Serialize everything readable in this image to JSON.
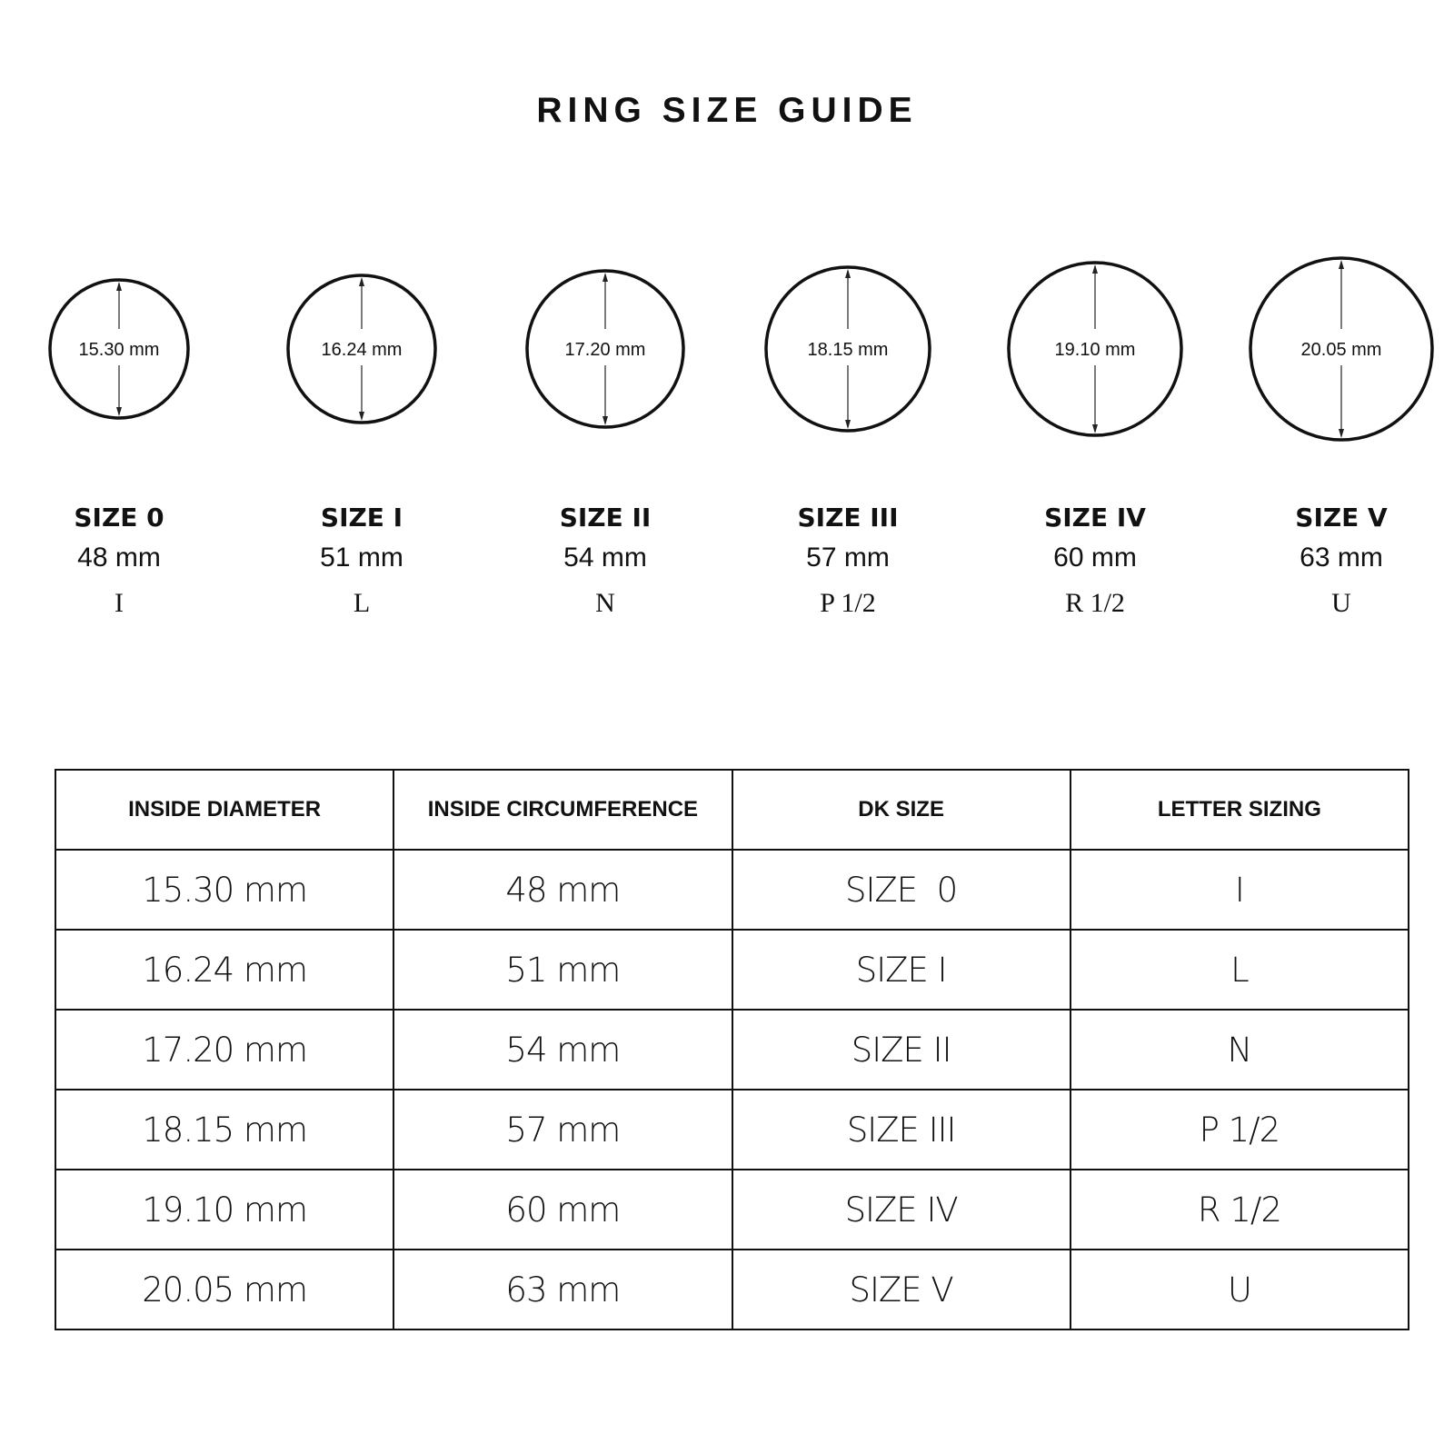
{
  "title": "RING SIZE GUIDE",
  "rings": [
    {
      "diameter": "15.30 mm",
      "size": "SIZE 0",
      "circumference": "48 mm",
      "letter": "I"
    },
    {
      "diameter": "16.24 mm",
      "size": "SIZE I",
      "circumference": "51 mm",
      "letter": "L"
    },
    {
      "diameter": "17.20 mm",
      "size": "SIZE II",
      "circumference": "54 mm",
      "letter": "N"
    },
    {
      "diameter": "18.15 mm",
      "size": "SIZE III",
      "circumference": "57 mm",
      "letter": "P 1/2"
    },
    {
      "diameter": "19.10 mm",
      "size": "SIZE IV",
      "circumference": "60 mm",
      "letter": "R 1/2"
    },
    {
      "diameter": "20.05 mm",
      "size": "SIZE V",
      "circumference": "63 mm",
      "letter": "U"
    }
  ],
  "table": {
    "headers": [
      "INSIDE DIAMETER",
      "INSIDE CIRCUMFERENCE",
      "DK SIZE",
      "LETTER SIZING"
    ],
    "rows": [
      [
        "15.30 mm",
        "48 mm",
        "SIZE  0",
        "I"
      ],
      [
        "16.24 mm",
        "51 mm",
        "SIZE I",
        "L"
      ],
      [
        "17.20 mm",
        "54 mm",
        "SIZE II",
        "N"
      ],
      [
        "18.15 mm",
        "57 mm",
        "SIZE III",
        "P 1/2"
      ],
      [
        "19.10 mm",
        "60 mm",
        "SIZE IV",
        "R 1/2"
      ],
      [
        "20.05 mm",
        "63 mm",
        "SIZE V",
        "U"
      ]
    ]
  }
}
